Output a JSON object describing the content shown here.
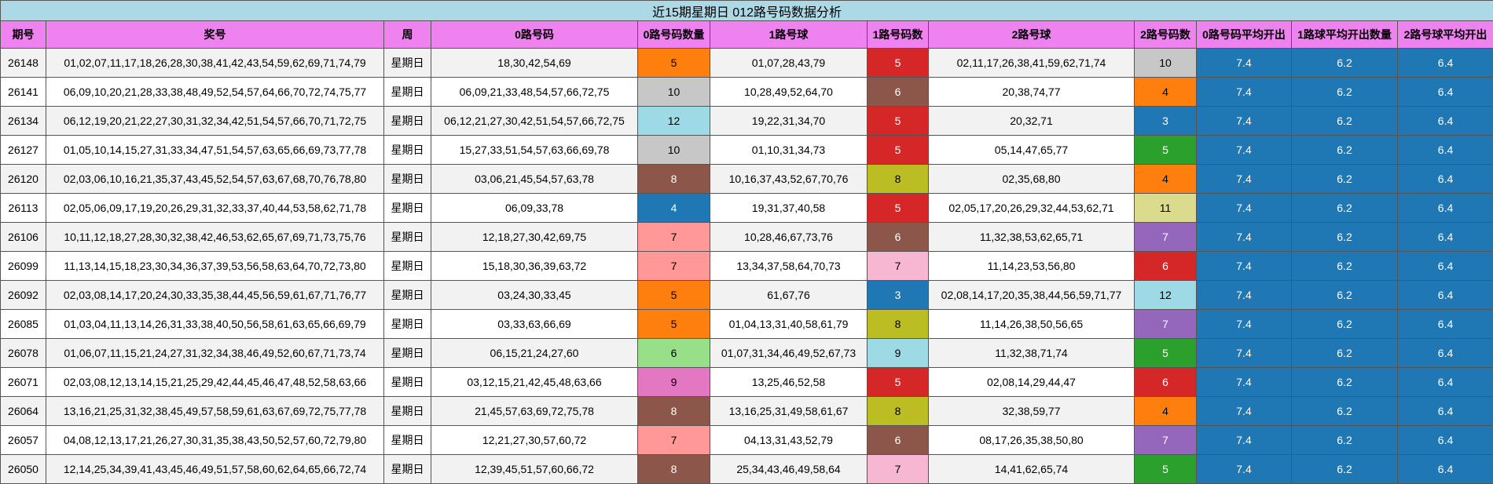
{
  "table": {
    "title": "近15期星期日 012路号码数据分析",
    "header_color": "#ee82ee",
    "title_color": "#add8e6",
    "summary_color": "#1f77b4",
    "columns": [
      "期号",
      "奖号",
      "周",
      "0路号码",
      "0路号码数量",
      "1路号球",
      "1路号码数",
      "2路号球",
      "2路号码数",
      "0路号码平均开出",
      "1路球平均开出数量",
      "2路号球平均开出"
    ],
    "rows": [
      [
        "26148",
        "01,02,07,11,17,18,26,28,30,38,41,42,43,54,59,62,69,71,74,79",
        "星期日",
        "18,30,42,54,69",
        "5",
        "01,07,28,43,79",
        "5",
        "02,11,17,26,38,41,59,62,71,74",
        "10",
        "7.4",
        "6.2",
        "6.4"
      ],
      [
        "26141",
        "06,09,10,20,21,28,33,38,48,49,52,54,57,64,66,70,72,74,75,77",
        "星期日",
        "06,09,21,33,48,54,57,66,72,75",
        "10",
        "10,28,49,52,64,70",
        "6",
        "20,38,74,77",
        "4",
        "7.4",
        "6.2",
        "6.4"
      ],
      [
        "26134",
        "06,12,19,20,21,22,27,30,31,32,34,42,51,54,57,66,70,71,72,75",
        "星期日",
        "06,12,21,27,30,42,51,54,57,66,72,75",
        "12",
        "19,22,31,34,70",
        "5",
        "20,32,71",
        "3",
        "7.4",
        "6.2",
        "6.4"
      ],
      [
        "26127",
        "01,05,10,14,15,27,31,33,34,47,51,54,57,63,65,66,69,73,77,78",
        "星期日",
        "15,27,33,51,54,57,63,66,69,78",
        "10",
        "01,10,31,34,73",
        "5",
        "05,14,47,65,77",
        "5",
        "7.4",
        "6.2",
        "6.4"
      ],
      [
        "26120",
        "02,03,06,10,16,21,35,37,43,45,52,54,57,63,67,68,70,76,78,80",
        "星期日",
        "03,06,21,45,54,57,63,78",
        "8",
        "10,16,37,43,52,67,70,76",
        "8",
        "02,35,68,80",
        "4",
        "7.4",
        "6.2",
        "6.4"
      ],
      [
        "26113",
        "02,05,06,09,17,19,20,26,29,31,32,33,37,40,44,53,58,62,71,78",
        "星期日",
        "06,09,33,78",
        "4",
        "19,31,37,40,58",
        "5",
        "02,05,17,20,26,29,32,44,53,62,71",
        "11",
        "7.4",
        "6.2",
        "6.4"
      ],
      [
        "26106",
        "10,11,12,18,27,28,30,32,38,42,46,53,62,65,67,69,71,73,75,76",
        "星期日",
        "12,18,27,30,42,69,75",
        "7",
        "10,28,46,67,73,76",
        "6",
        "11,32,38,53,62,65,71",
        "7",
        "7.4",
        "6.2",
        "6.4"
      ],
      [
        "26099",
        "11,13,14,15,18,23,30,34,36,37,39,53,56,58,63,64,70,72,73,80",
        "星期日",
        "15,18,30,36,39,63,72",
        "7",
        "13,34,37,58,64,70,73",
        "7",
        "11,14,23,53,56,80",
        "6",
        "7.4",
        "6.2",
        "6.4"
      ],
      [
        "26092",
        "02,03,08,14,17,20,24,30,33,35,38,44,45,56,59,61,67,71,76,77",
        "星期日",
        "03,24,30,33,45",
        "5",
        "61,67,76",
        "3",
        "02,08,14,17,20,35,38,44,56,59,71,77",
        "12",
        "7.4",
        "6.2",
        "6.4"
      ],
      [
        "26085",
        "01,03,04,11,13,14,26,31,33,38,40,50,56,58,61,63,65,66,69,79",
        "星期日",
        "03,33,63,66,69",
        "5",
        "01,04,13,31,40,58,61,79",
        "8",
        "11,14,26,38,50,56,65",
        "7",
        "7.4",
        "6.2",
        "6.4"
      ],
      [
        "26078",
        "01,06,07,11,15,21,24,27,31,32,34,38,46,49,52,60,67,71,73,74",
        "星期日",
        "06,15,21,24,27,60",
        "6",
        "01,07,31,34,46,49,52,67,73",
        "9",
        "11,32,38,71,74",
        "5",
        "7.4",
        "6.2",
        "6.4"
      ],
      [
        "26071",
        "02,03,08,12,13,14,15,21,25,29,42,44,45,46,47,48,52,58,63,66",
        "星期日",
        "03,12,15,21,42,45,48,63,66",
        "9",
        "13,25,46,52,58",
        "5",
        "02,08,14,29,44,47",
        "6",
        "7.4",
        "6.2",
        "6.4"
      ],
      [
        "26064",
        "13,16,21,25,31,32,38,45,49,57,58,59,61,63,67,69,72,75,77,78",
        "星期日",
        "21,45,57,63,69,72,75,78",
        "8",
        "13,16,25,31,49,58,61,67",
        "8",
        "32,38,59,77",
        "4",
        "7.4",
        "6.2",
        "6.4"
      ],
      [
        "26057",
        "04,08,12,13,17,21,26,27,30,31,35,38,43,50,52,57,60,72,79,80",
        "星期日",
        "12,21,27,30,57,60,72",
        "7",
        "04,13,31,43,52,79",
        "6",
        "08,17,26,35,38,50,80",
        "7",
        "7.4",
        "6.2",
        "6.4"
      ],
      [
        "26050",
        "12,14,25,34,39,41,43,45,46,49,51,57,58,60,62,64,65,66,72,74",
        "星期日",
        "12,39,45,51,57,60,66,72",
        "8",
        "25,34,43,46,49,58,64",
        "7",
        "14,41,62,65,74",
        "5",
        "7.4",
        "6.2",
        "6.4"
      ]
    ],
    "count_colors": [
      [
        "#ff7f0e",
        "#d62728",
        "#c7c7c7"
      ],
      [
        "#c7c7c7",
        "#8c564b",
        "#ff7f0e"
      ],
      [
        "#9edae5",
        "#d62728",
        "#1f77b4"
      ],
      [
        "#c7c7c7",
        "#d62728",
        "#2ca02c"
      ],
      [
        "#8c564b",
        "#bcbd22",
        "#ff7f0e"
      ],
      [
        "#1f77b4",
        "#d62728",
        "#dbdb8d"
      ],
      [
        "#ff9896",
        "#8c564b",
        "#9467bd"
      ],
      [
        "#ff9896",
        "#f7b6d2",
        "#d62728"
      ],
      [
        "#ff7f0e",
        "#1f77b4",
        "#9edae5"
      ],
      [
        "#ff7f0e",
        "#bcbd22",
        "#9467bd"
      ],
      [
        "#98df8a",
        "#9edae5",
        "#2ca02c"
      ],
      [
        "#e377c2",
        "#d62728",
        "#d62728"
      ],
      [
        "#8c564b",
        "#bcbd22",
        "#ff7f0e"
      ],
      [
        "#ff9896",
        "#8c564b",
        "#9467bd"
      ],
      [
        "#8c564b",
        "#f7b6d2",
        "#2ca02c"
      ]
    ]
  }
}
